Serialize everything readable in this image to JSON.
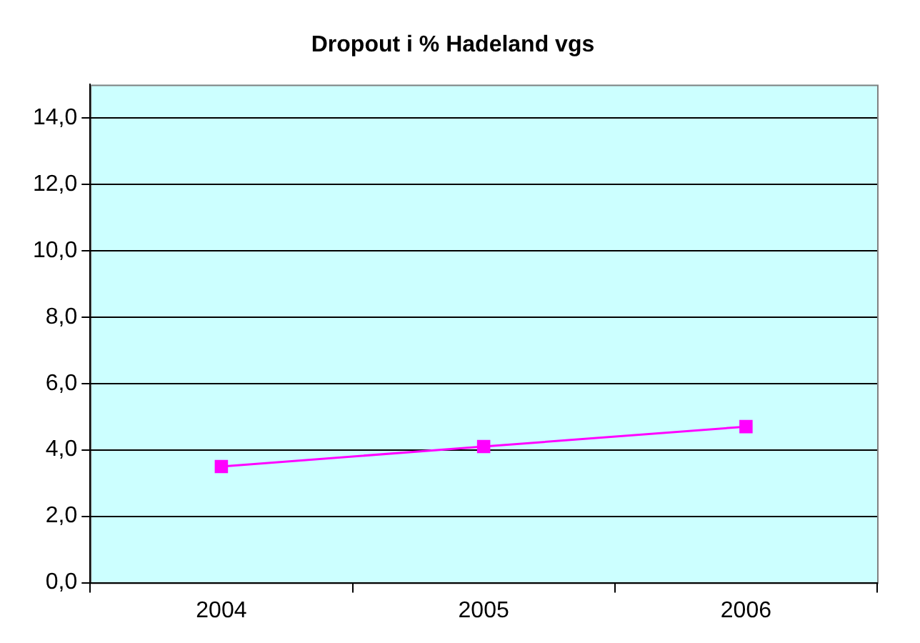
{
  "chart_data": {
    "type": "line",
    "title": "Dropout i % Hadeland vgs",
    "categories": [
      "2004",
      "2005",
      "2006"
    ],
    "series": [
      {
        "color": "#ff00ff",
        "values": [
          3.5,
          4.1,
          4.7
        ]
      }
    ],
    "ylim": [
      0,
      15
    ],
    "yticks": [
      {
        "value": 0,
        "label": "0,0"
      },
      {
        "value": 2,
        "label": "2,0"
      },
      {
        "value": 4,
        "label": "4,0"
      },
      {
        "value": 6,
        "label": "6,0"
      },
      {
        "value": 8,
        "label": "8,0"
      },
      {
        "value": 10,
        "label": "10,0"
      },
      {
        "value": 12,
        "label": "12,0"
      },
      {
        "value": 14,
        "label": "14,0"
      }
    ],
    "grid": "y",
    "legend": false,
    "marker": "square",
    "line_style": "solid"
  }
}
